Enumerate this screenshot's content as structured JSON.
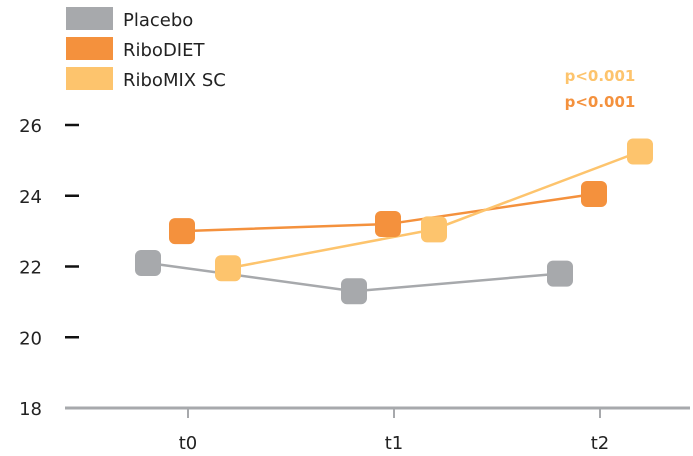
{
  "chart_data": {
    "type": "line",
    "categories": [
      "t0",
      "t1",
      "t2"
    ],
    "series": [
      {
        "name": "Placebo",
        "color": "#a7a9ac",
        "values": [
          22.1,
          21.3,
          21.8
        ]
      },
      {
        "name": "RiboDIET",
        "color": "#f4913d",
        "values": [
          23.0,
          23.2,
          24.05
        ]
      },
      {
        "name": "RiboMIX SC",
        "color": "#fdc46d",
        "values": [
          21.95,
          23.05,
          25.25
        ]
      }
    ],
    "ylim": [
      18,
      26
    ],
    "yticks": [
      18,
      20,
      22,
      24,
      26
    ],
    "legend_position": "top-left",
    "annotations": [
      {
        "text": "p<0.001",
        "color": "#fdc46d"
      },
      {
        "text": "p<0.001",
        "color": "#f4913d"
      }
    ],
    "title": "",
    "xlabel": "",
    "ylabel": ""
  }
}
